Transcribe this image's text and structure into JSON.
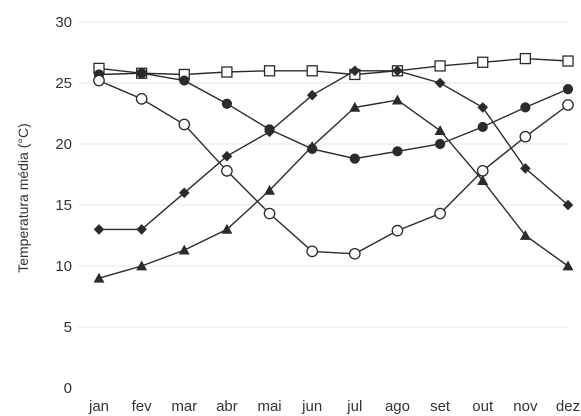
{
  "chart_data": {
    "type": "line",
    "title": "",
    "xlabel": "",
    "ylabel": "Temperatura média (°C)",
    "ylim": [
      0,
      30
    ],
    "yticks": [
      0,
      5,
      10,
      15,
      20,
      25,
      30
    ],
    "grid": "horizontal",
    "legend": "none",
    "categories": [
      "jan",
      "fev",
      "mar",
      "abr",
      "mai",
      "jun",
      "jul",
      "ago",
      "set",
      "out",
      "nov",
      "dez"
    ],
    "series": [
      {
        "marker": "open-square",
        "color": "#2b2b2b",
        "values": [
          26.2,
          25.8,
          25.7,
          25.9,
          26.0,
          26.0,
          25.7,
          26.0,
          26.4,
          26.7,
          27.0,
          26.8
        ]
      },
      {
        "marker": "filled-circle",
        "color": "#2b2b2b",
        "values": [
          25.7,
          25.8,
          25.2,
          23.3,
          21.2,
          19.6,
          18.8,
          19.4,
          20.0,
          21.4,
          23.0,
          24.5
        ]
      },
      {
        "marker": "filled-diamond",
        "color": "#2b2b2b",
        "values": [
          13.0,
          13.0,
          16.0,
          19.0,
          21.0,
          24.0,
          26.0,
          26.0,
          25.0,
          23.0,
          18.0,
          15.0
        ]
      },
      {
        "marker": "open-circle",
        "color": "#2b2b2b",
        "values": [
          25.2,
          23.7,
          21.6,
          17.8,
          14.3,
          11.2,
          11.0,
          12.9,
          14.3,
          17.8,
          20.6,
          23.2
        ]
      },
      {
        "marker": "filled-triangle",
        "color": "#2b2b2b",
        "values": [
          9.0,
          10.0,
          11.3,
          13.0,
          16.2,
          19.8,
          23.0,
          23.6,
          21.1,
          17.0,
          12.5,
          10.0
        ]
      }
    ]
  }
}
